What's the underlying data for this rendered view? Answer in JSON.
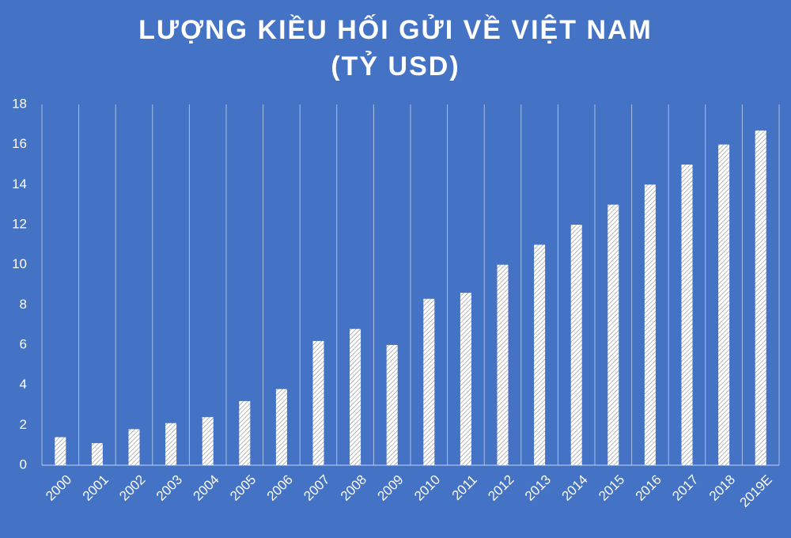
{
  "chart_data": {
    "type": "bar",
    "title": "LƯỢNG KIỀU HỐI GỬI VỀ VIỆT NAM",
    "subtitle": "(TỶ USD)",
    "categories": [
      "2000",
      "2001",
      "2002",
      "2003",
      "2004",
      "2005",
      "2006",
      "2007",
      "2008",
      "2009",
      "2010",
      "2011",
      "2012",
      "2013",
      "2014",
      "2015",
      "2016",
      "2017",
      "2018",
      "2019E"
    ],
    "values": [
      1.4,
      1.1,
      1.8,
      2.1,
      2.4,
      3.2,
      3.8,
      6.2,
      6.8,
      6.0,
      8.3,
      8.6,
      10.0,
      11.0,
      12.0,
      13.0,
      14.0,
      15.0,
      16.0,
      16.7
    ],
    "color": "#ffffff",
    "ylim": [
      0,
      18
    ],
    "yticks": [
      0,
      2,
      4,
      6,
      8,
      10,
      12,
      14,
      16,
      18
    ],
    "grid": true
  }
}
